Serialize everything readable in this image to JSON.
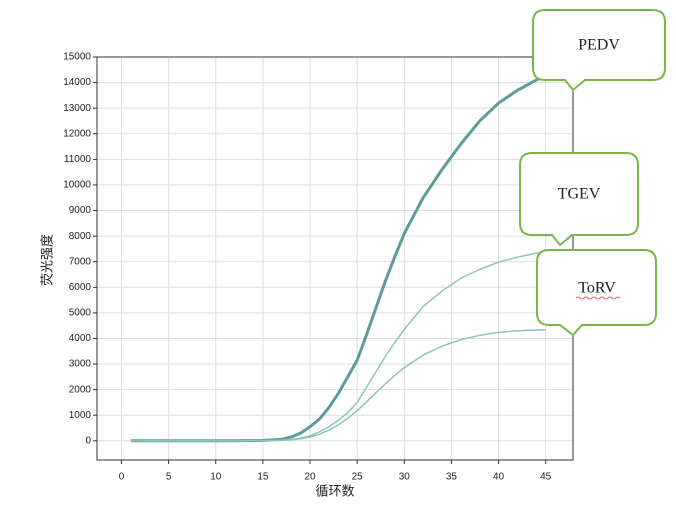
{
  "chart_data": {
    "type": "line",
    "xlabel": "循环数",
    "ylabel": "荧光强度",
    "x": [
      1,
      5,
      10,
      15,
      17,
      18,
      19,
      20,
      21,
      22,
      23,
      24,
      25,
      26,
      27,
      28,
      29,
      30,
      32,
      34,
      35,
      36,
      38,
      40,
      42,
      44,
      45
    ],
    "series": [
      {
        "name": "PEDV",
        "color": "#5e9c9c",
        "width": 3,
        "values": [
          0,
          0,
          0,
          10,
          60,
          150,
          300,
          550,
          850,
          1300,
          1850,
          2500,
          3150,
          4150,
          5200,
          6250,
          7200,
          8100,
          9500,
          10600,
          11100,
          11600,
          12500,
          13200,
          13700,
          14100,
          14250
        ]
      },
      {
        "name": "TGEV",
        "color": "#8fc4bc",
        "width": 1.5,
        "values": [
          0,
          0,
          0,
          0,
          20,
          50,
          100,
          200,
          350,
          550,
          800,
          1100,
          1500,
          2100,
          2700,
          3300,
          3850,
          4350,
          5250,
          5850,
          6100,
          6350,
          6700,
          6980,
          7180,
          7330,
          7380
        ]
      },
      {
        "name": "ToRV",
        "color": "#8fc4bc",
        "width": 1.5,
        "values": [
          0,
          0,
          0,
          0,
          15,
          40,
          80,
          150,
          260,
          420,
          620,
          880,
          1180,
          1520,
          1880,
          2230,
          2560,
          2860,
          3350,
          3700,
          3830,
          3950,
          4120,
          4240,
          4300,
          4330,
          4340
        ]
      }
    ],
    "xlim": [
      -2.6,
      47.9
    ],
    "ylim": [
      -750,
      15000
    ],
    "xticks": [
      0,
      5,
      10,
      15,
      20,
      25,
      30,
      35,
      40,
      45
    ],
    "yticks": [
      0,
      1000,
      2000,
      3000,
      4000,
      5000,
      6000,
      7000,
      8000,
      9000,
      10000,
      11000,
      12000,
      13000,
      14000,
      15000
    ],
    "grid": true
  }
}
